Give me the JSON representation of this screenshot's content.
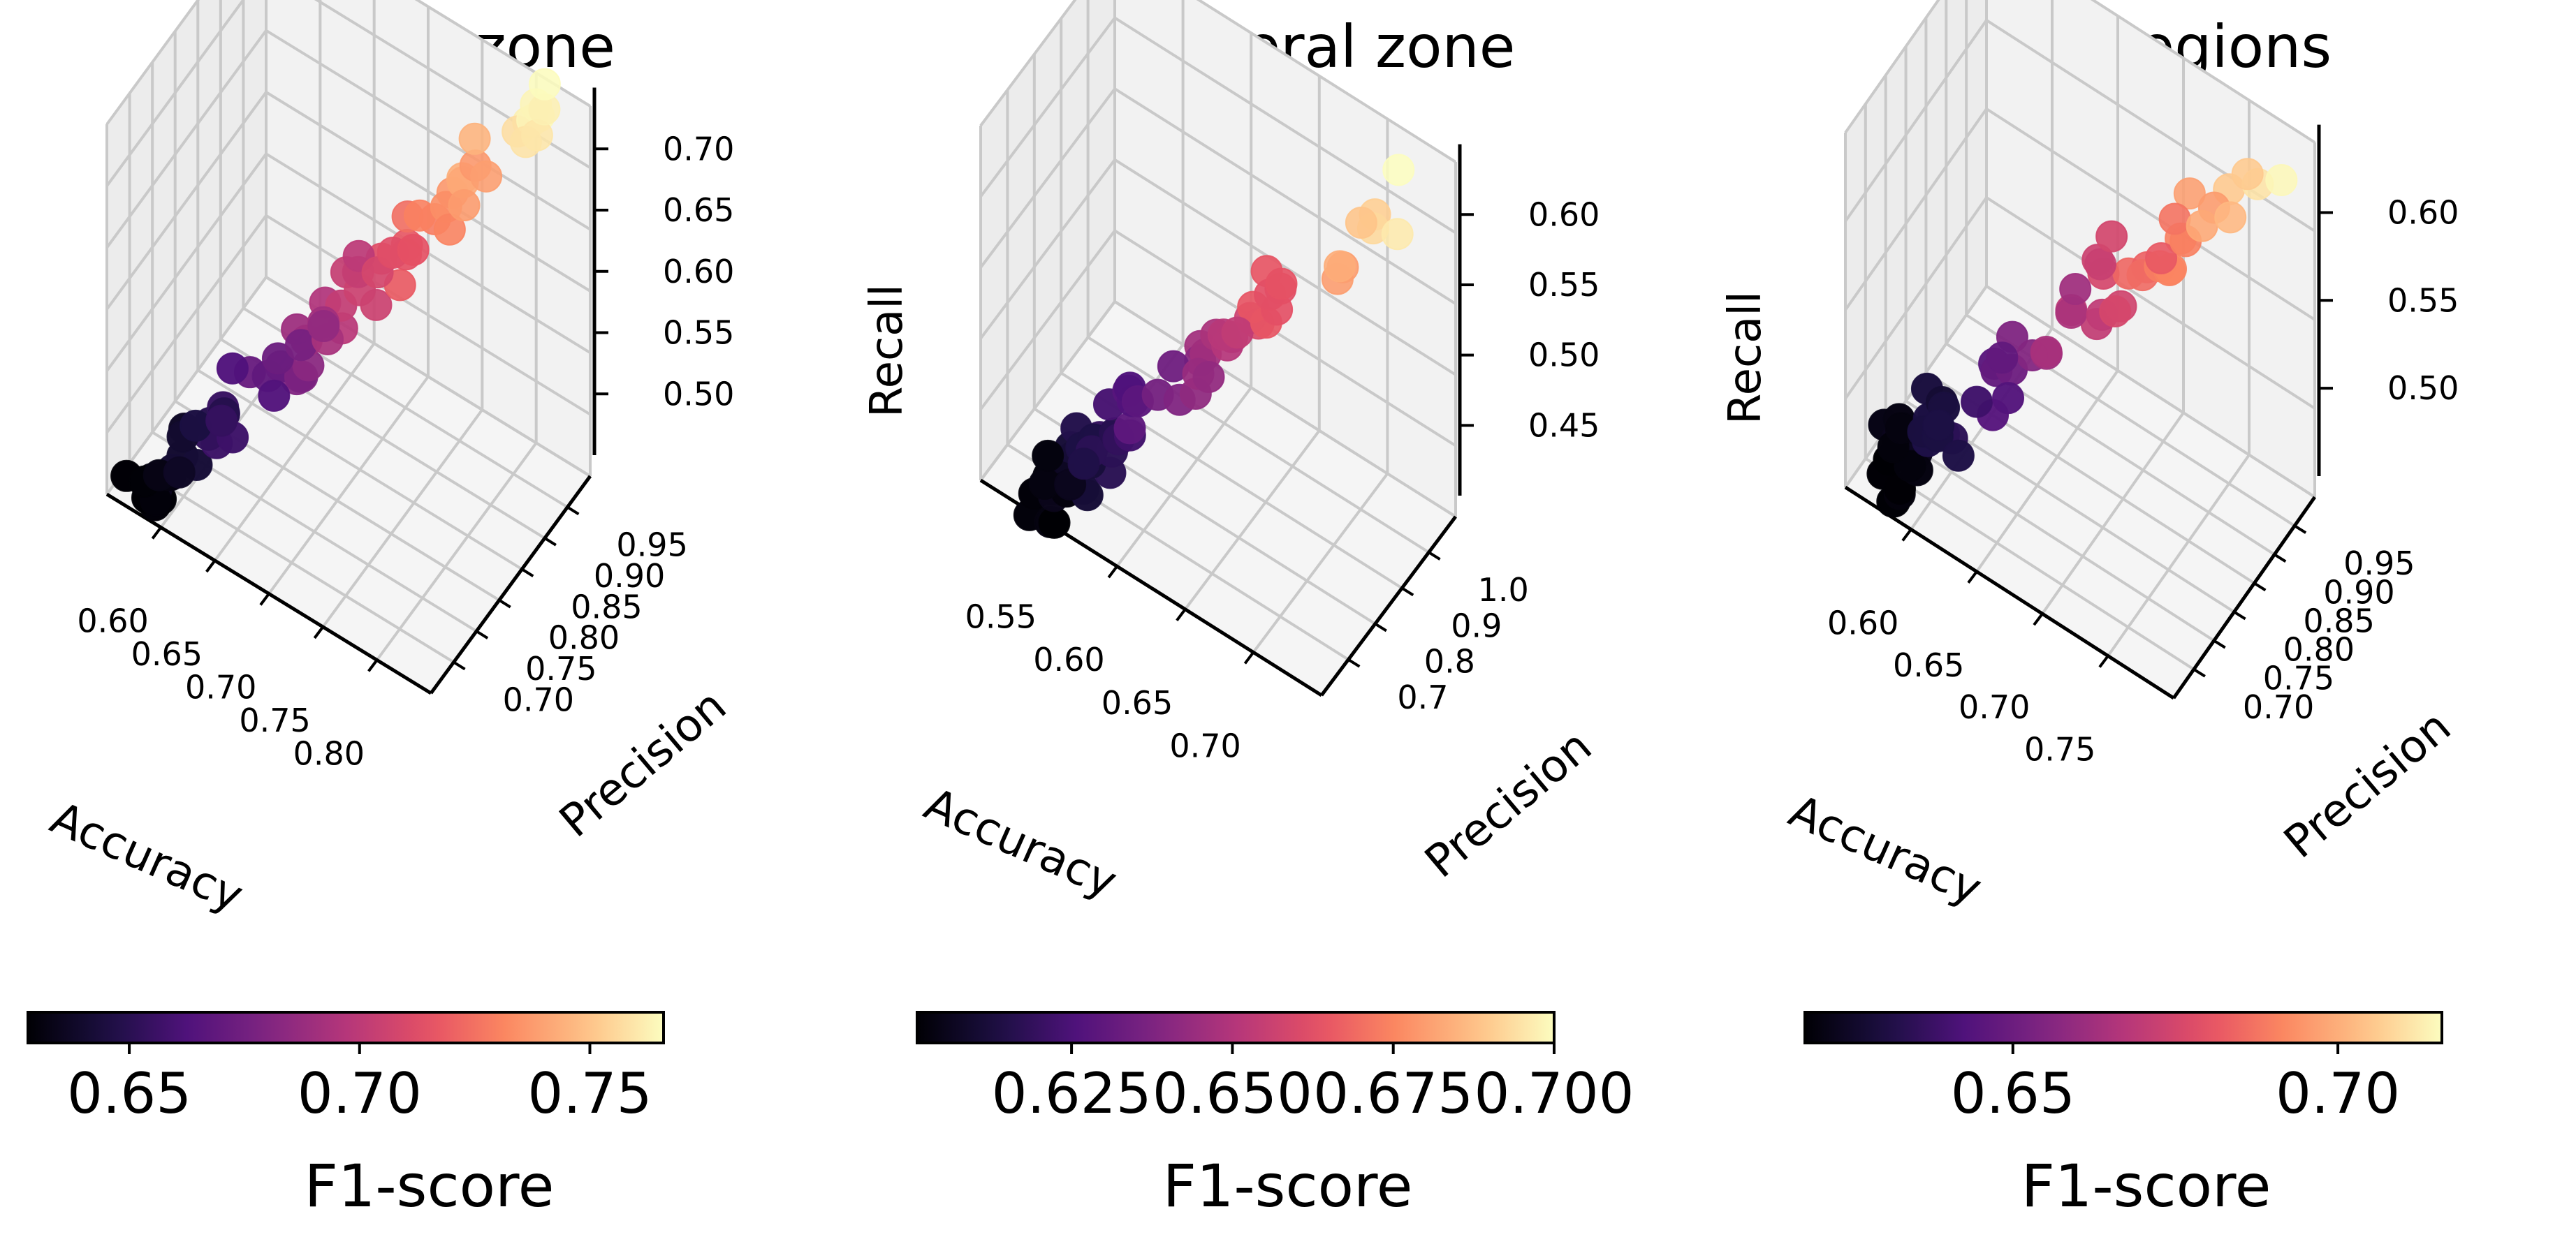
{
  "figure": {
    "colormap": "magma",
    "background": "#ffffff"
  },
  "chart_data": [
    {
      "type": "scatter3d",
      "title": "Central zone",
      "xlabel": "Accuracy",
      "ylabel": "Precision",
      "zlabel": "",
      "x_ticks": [
        "0.60",
        "0.65",
        "0.70",
        "0.75",
        "0.80"
      ],
      "y_ticks": [
        "0.70",
        "0.75",
        "0.80",
        "0.85",
        "0.90",
        "0.95"
      ],
      "z_ticks": [
        "0.50",
        "0.55",
        "0.60",
        "0.65",
        "0.70"
      ],
      "xlim": [
        0.58,
        0.83
      ],
      "ylim": [
        0.67,
        0.97
      ],
      "zlim": [
        0.47,
        0.72
      ],
      "trend": {
        "start": {
          "x": 0.6,
          "y": 0.7,
          "z": 0.47
        },
        "end": {
          "x": 0.8,
          "y": 0.95,
          "z": 0.71
        }
      },
      "point_count": 80,
      "colorbar": {
        "label": "F1-score",
        "ticks": [
          "0.65",
          "0.70",
          "0.75"
        ],
        "range": [
          0.628,
          0.766
        ]
      }
    },
    {
      "type": "scatter3d",
      "title": "Peripheral zone",
      "xlabel": "Accuracy",
      "ylabel": "Precision",
      "zlabel": "Recall",
      "x_ticks": [
        "0.55",
        "0.60",
        "0.65",
        "0.70"
      ],
      "y_ticks": [
        "0.7",
        "0.8",
        "0.9",
        "1.0"
      ],
      "z_ticks": [
        "0.45",
        "0.50",
        "0.55",
        "0.60"
      ],
      "xlim": [
        0.53,
        0.74
      ],
      "ylim": [
        0.62,
        1.05
      ],
      "zlim": [
        0.43,
        0.62
      ],
      "trend": {
        "start": {
          "x": 0.56,
          "y": 0.66,
          "z": 0.43
        },
        "end": {
          "x": 0.72,
          "y": 1.0,
          "z": 0.6
        }
      },
      "point_count": 70,
      "colorbar": {
        "label": "F1-score",
        "ticks": [
          "0.625",
          "0.650",
          "0.675",
          "0.700"
        ],
        "range": [
          0.601,
          0.7
        ]
      }
    },
    {
      "type": "scatter3d",
      "title": "Both regions",
      "xlabel": "Accuracy",
      "ylabel": "Precision",
      "zlabel": "Recall",
      "x_ticks": [
        "0.60",
        "0.65",
        "0.70",
        "0.75"
      ],
      "y_ticks": [
        "0.70",
        "0.75",
        "0.80",
        "0.85",
        "0.90",
        "0.95"
      ],
      "z_ticks": [
        "0.50",
        "0.55",
        "0.60"
      ],
      "xlim": [
        0.57,
        0.79
      ],
      "ylim": [
        0.67,
        0.97
      ],
      "zlim": [
        0.46,
        0.63
      ],
      "trend": {
        "start": {
          "x": 0.59,
          "y": 0.7,
          "z": 0.47
        },
        "end": {
          "x": 0.77,
          "y": 0.95,
          "z": 0.62
        }
      },
      "point_count": 70,
      "colorbar": {
        "label": "F1-score",
        "ticks": [
          "0.65",
          "0.70"
        ],
        "range": [
          0.618,
          0.716
        ]
      }
    }
  ]
}
